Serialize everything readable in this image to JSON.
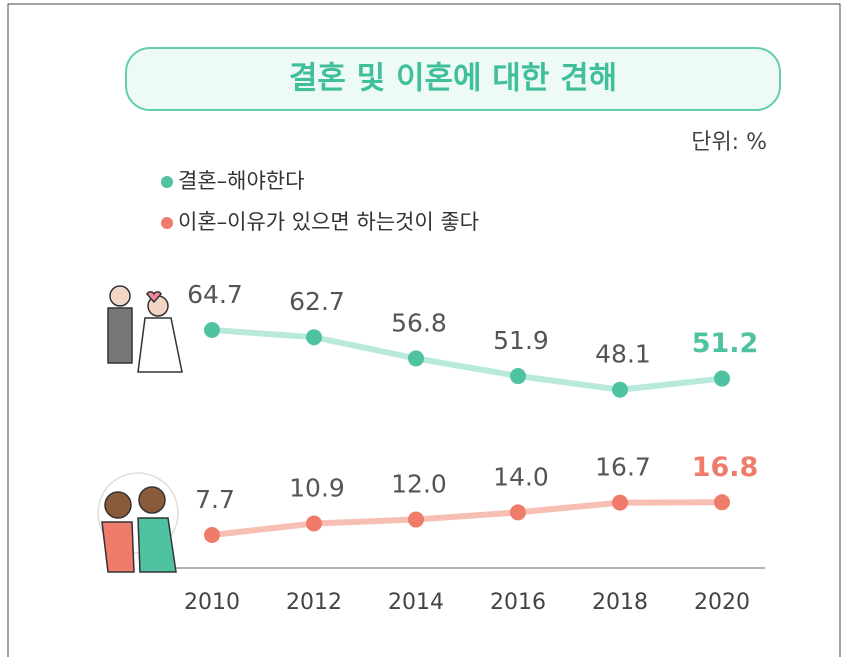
{
  "chart_data": {
    "type": "line",
    "title": "결혼 및 이혼에 대한 견해",
    "unit": "단위: %",
    "x": [
      2010,
      2012,
      2014,
      2016,
      2018,
      2020
    ],
    "series": [
      {
        "name": "결혼–해야한다",
        "color": "#4fc3a1",
        "line_color": "#b9e9da",
        "values": [
          64.7,
          62.7,
          56.8,
          51.9,
          48.1,
          51.2
        ],
        "value_labels": [
          "64.7",
          "62.7",
          "56.8",
          "51.9",
          "48.1",
          "51.2"
        ]
      },
      {
        "name": "이혼–이유가 있으면 하는것이 좋다",
        "color": "#ef7b6b",
        "line_color": "#f7bfb3",
        "values": [
          7.7,
          10.9,
          12.0,
          14.0,
          16.7,
          16.8
        ],
        "value_labels": [
          "7.7",
          "10.9",
          "12.0",
          "14.0",
          "16.7",
          "16.8"
        ]
      }
    ]
  }
}
